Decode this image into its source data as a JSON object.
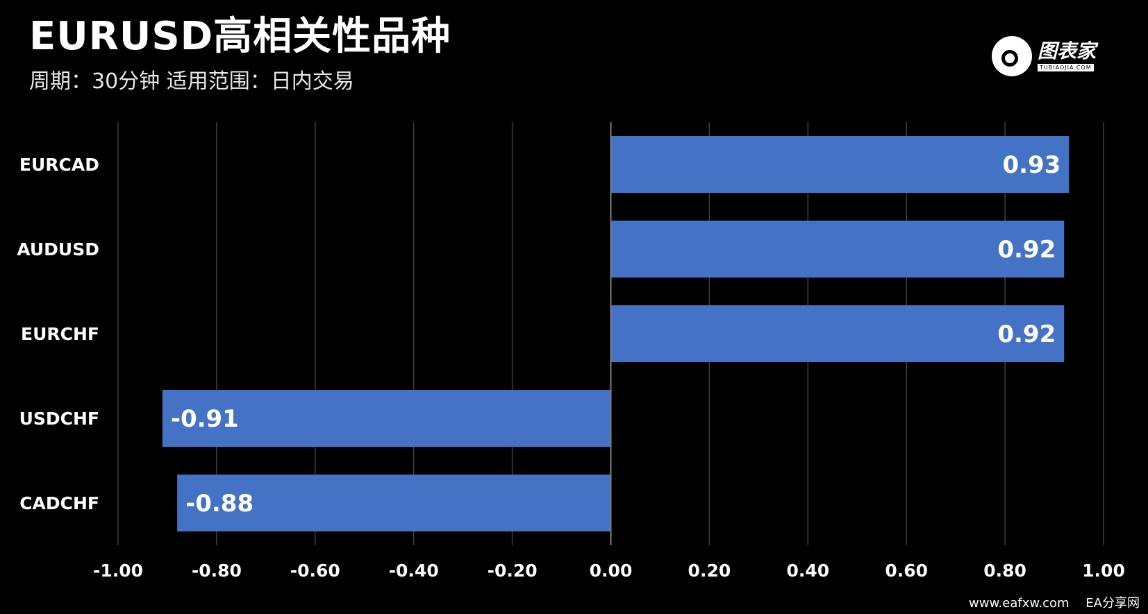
{
  "header": {
    "title": "EURUSD高相关性品种",
    "subtitle": "周期：30分钟  适用范围：日内交易"
  },
  "brand": {
    "name": "图表家",
    "domain": "TUBIAOJIA.COM"
  },
  "footer": {
    "site": "www.eafxw.com",
    "label": "EA分享网"
  },
  "colors": {
    "background": "#000000",
    "bar": "#4472C4",
    "grid": "#404040",
    "zero_line": "#808080",
    "text": "#ffffff"
  },
  "chart_data": {
    "type": "bar",
    "orientation": "horizontal",
    "categories": [
      "EURCAD",
      "AUDUSD",
      "EURCHF",
      "USDCHF",
      "CADCHF"
    ],
    "values": [
      0.93,
      0.92,
      0.92,
      -0.91,
      -0.88
    ],
    "value_labels": [
      "0.93",
      "0.92",
      "0.92",
      "-0.91",
      "-0.88"
    ],
    "xlim": [
      -1.0,
      1.0
    ],
    "ticks": [
      -1.0,
      -0.8,
      -0.6,
      -0.4,
      -0.2,
      0.0,
      0.2,
      0.4,
      0.6,
      0.8,
      1.0
    ],
    "tick_labels": [
      "-1.00",
      "-0.80",
      "-0.60",
      "-0.40",
      "-0.20",
      "0.00",
      "0.20",
      "0.40",
      "0.60",
      "0.80",
      "1.00"
    ],
    "grid": true
  }
}
